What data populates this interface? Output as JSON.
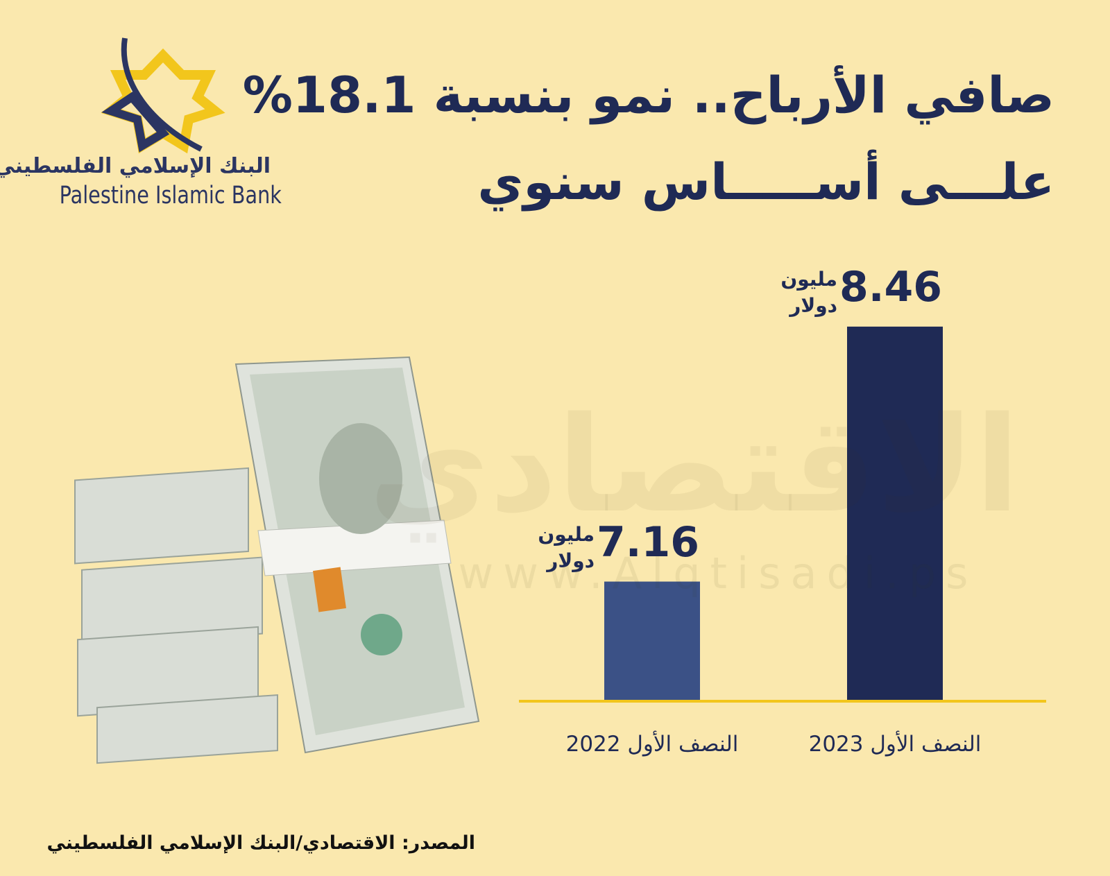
{
  "chart_data": {
    "type": "bar",
    "title": [
      "صافي الأرباح.. نمو بنسبة 18.1%",
      "علـــى أســـــاس سنوي"
    ],
    "categories": [
      "النصف الأول 2022",
      "النصف الأول 2023"
    ],
    "values": [
      7.16,
      8.46
    ],
    "value_unit": [
      "مليون",
      "دولار"
    ],
    "colors": [
      "#3b5186",
      "#1f2a55"
    ],
    "baseline_color": "#f2c61c",
    "ylim": [
      6.55,
      8.64
    ],
    "source": "المصدر: الاقتصادي/البنك الإسلامي الفلسطيني"
  },
  "logo": {
    "arabic": "البنك الإسلامي الفلسطيني",
    "english": "Palestine Islamic Bank"
  },
  "watermark": {
    "name": "الاقتصادي",
    "url": "www.Alqtisadi.ps"
  }
}
